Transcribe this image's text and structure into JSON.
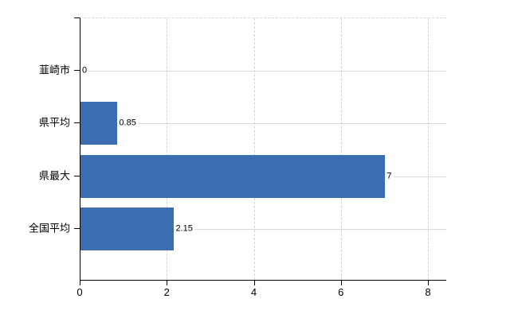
{
  "chart_data": {
    "type": "bar",
    "orientation": "horizontal",
    "title": "",
    "categories": [
      "韮崎市",
      "県平均",
      "県最大",
      "全国平均"
    ],
    "values": [
      0,
      0.85,
      7,
      2.15
    ],
    "value_labels": [
      "0",
      "0.85",
      "7",
      "2.15"
    ],
    "x_tick_labels": [
      "0",
      "2",
      "4",
      "6",
      "8"
    ],
    "x_tick_values": [
      0,
      2,
      4,
      6,
      8
    ],
    "xlim": [
      0,
      8.42
    ],
    "grid": true,
    "legend": false,
    "colors": {
      "bar": "#3b6eb1",
      "grid_horizontal": "#d6dcd6",
      "grid_vertical": "#cfd6cf",
      "axis": "#000000",
      "text": "#000000",
      "background": "#ffffff"
    }
  }
}
